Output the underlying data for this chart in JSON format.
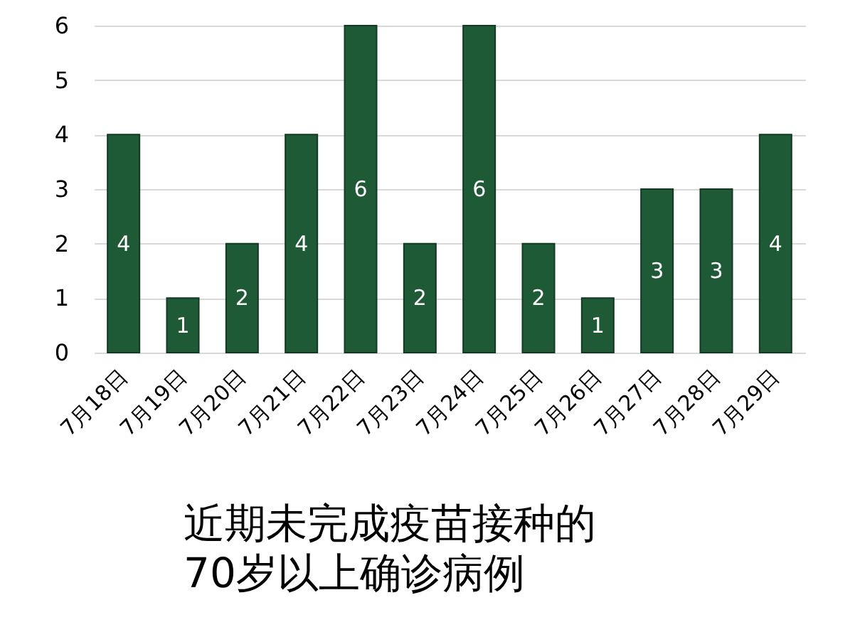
{
  "chart_data": {
    "type": "bar",
    "title": "近期未完成疫苗接种的70岁以上确诊病例",
    "categories": [
      "7月18日",
      "7月19日",
      "7月20日",
      "7月21日",
      "7月22日",
      "7月23日",
      "7月24日",
      "7月25日",
      "7月26日",
      "7月27日",
      "7月28日",
      "7月29日"
    ],
    "values": [
      4,
      1,
      2,
      4,
      6,
      2,
      6,
      2,
      1,
      3,
      3,
      4
    ],
    "color": "#1e5a36",
    "ylim": [
      0,
      6
    ],
    "yticks": [
      0,
      1,
      2,
      3,
      4,
      5,
      6
    ],
    "grid": "y",
    "data_labels": true
  }
}
